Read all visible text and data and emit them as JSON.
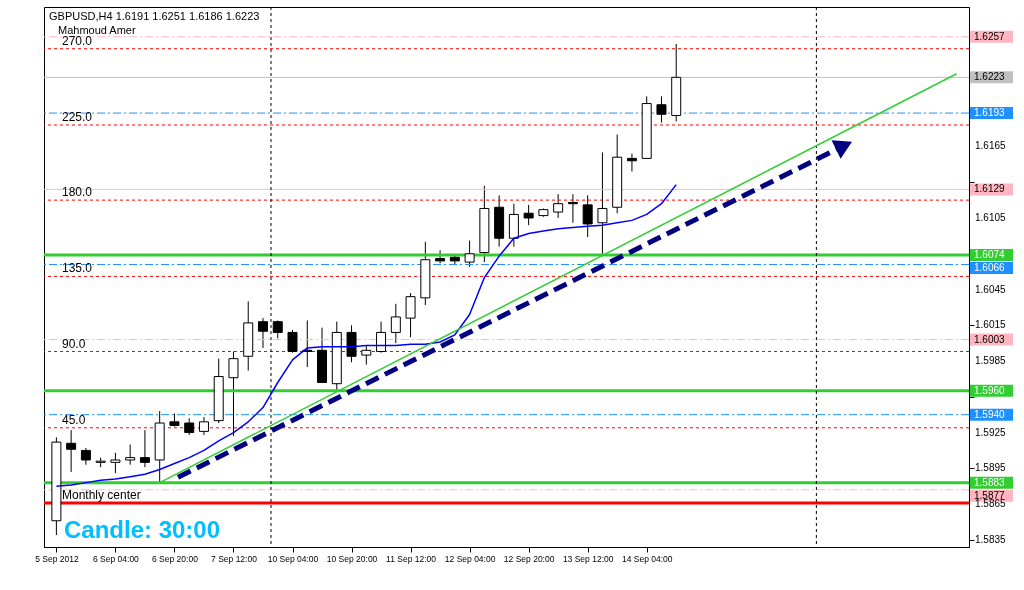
{
  "chart_data": {
    "type": "candlestick",
    "title": "GBPUSD,H4  1.6191 1.6251 1.6186 1.6223",
    "categories": [
      "5 Sep 2012",
      null,
      null,
      null,
      "6 Sep 04:00",
      null,
      null,
      null,
      "6 Sep 20:00",
      null,
      null,
      null,
      "7 Sep 12:00",
      null,
      null,
      null,
      "10 Sep 04:00",
      null,
      null,
      null,
      "10 Sep 20:00",
      null,
      null,
      null,
      "11 Sep 12:00",
      null,
      null,
      null,
      "12 Sep 04:00",
      null,
      null,
      null,
      "12 Sep 20:00",
      null,
      null,
      null,
      "13 Sep 12:00",
      null,
      null,
      null,
      "14 Sep 04:00",
      null,
      null,
      null,
      null,
      null,
      null,
      null,
      null,
      null,
      null,
      null,
      null,
      null,
      null,
      null,
      null,
      null,
      null,
      null,
      null,
      null
    ],
    "ohlc": [
      [
        1.5851,
        1.5921,
        1.5839,
        1.5917
      ],
      [
        1.5916,
        1.5927,
        1.5892,
        1.5911
      ],
      [
        1.591,
        1.5912,
        1.5898,
        1.5902
      ],
      [
        1.59,
        1.5904,
        1.5896,
        1.5901
      ],
      [
        1.59,
        1.5908,
        1.5891,
        1.5902
      ],
      [
        1.5902,
        1.5915,
        1.5898,
        1.5904
      ],
      [
        1.5904,
        1.5927,
        1.5896,
        1.59
      ],
      [
        1.5902,
        1.5943,
        1.5883,
        1.5933
      ],
      [
        1.5934,
        1.5941,
        1.593,
        1.5931
      ],
      [
        1.5933,
        1.5937,
        1.5923,
        1.5925
      ],
      [
        1.5926,
        1.5938,
        1.5923,
        1.5934
      ],
      [
        1.5935,
        1.5987,
        1.5933,
        1.5972
      ],
      [
        1.5971,
        1.5993,
        1.5922,
        1.5987
      ],
      [
        1.5989,
        1.6035,
        1.5977,
        1.6017
      ],
      [
        1.6018,
        1.6021,
        1.5996,
        1.601
      ],
      [
        1.6018,
        1.6019,
        1.6004,
        1.6009
      ],
      [
        1.6009,
        1.6011,
        1.5992,
        1.5993
      ],
      [
        1.5994,
        1.6019,
        1.598,
        1.5993
      ],
      [
        1.5994,
        1.6013,
        1.5967,
        1.5967
      ],
      [
        1.5966,
        1.6018,
        1.596,
        1.6009
      ],
      [
        1.6009,
        1.6015,
        1.5984,
        1.5989
      ],
      [
        1.599,
        1.5998,
        1.5982,
        1.5994
      ],
      [
        1.5993,
        1.6018,
        1.5992,
        1.6009
      ],
      [
        1.6009,
        1.6033,
        1.6,
        1.6022
      ],
      [
        1.6021,
        1.6042,
        1.6005,
        1.6039
      ],
      [
        1.6038,
        1.6085,
        1.6032,
        1.607
      ],
      [
        1.6071,
        1.6078,
        1.6067,
        1.6069
      ],
      [
        1.6072,
        1.6075,
        1.6066,
        1.6069
      ],
      [
        1.6068,
        1.6086,
        1.6064,
        1.6075
      ],
      [
        1.6076,
        1.6132,
        1.6068,
        1.6113
      ],
      [
        1.6114,
        1.6124,
        1.6081,
        1.6088
      ],
      [
        1.6088,
        1.6117,
        1.6081,
        1.6108
      ],
      [
        1.6109,
        1.6116,
        1.6099,
        1.6105
      ],
      [
        1.6107,
        1.6113,
        1.6106,
        1.6112
      ],
      [
        1.611,
        1.6125,
        1.6105,
        1.6117
      ],
      [
        1.6118,
        1.6125,
        1.6101,
        1.6117
      ],
      [
        1.6116,
        1.6124,
        1.6089,
        1.61
      ],
      [
        1.6101,
        1.616,
        1.6075,
        1.6113
      ],
      [
        1.6114,
        1.6175,
        1.6109,
        1.6156
      ],
      [
        1.6155,
        1.6159,
        1.6144,
        1.6153
      ],
      [
        1.6155,
        1.6207,
        1.6155,
        1.6201
      ],
      [
        1.62,
        1.6207,
        1.6185,
        1.6192
      ],
      [
        1.6191,
        1.6251,
        1.6186,
        1.6223
      ],
      null,
      null,
      null,
      null,
      null,
      null,
      null,
      null,
      null,
      null,
      null,
      null,
      null,
      null,
      null,
      null,
      null,
      null,
      null
    ],
    "ylim": [
      1.5829,
      1.6282
    ],
    "yticks": [
      1.5835,
      1.5865,
      1.5895,
      1.5925,
      {
        "value": 1.5955,
        "label": null
      },
      1.5985,
      1.6015,
      1.6045,
      {
        "value": 1.6075,
        "label": null
      },
      1.6105,
      {
        "value": 1.6135,
        "label": null
      },
      1.6165,
      {
        "value": 1.6195,
        "label": null
      },
      {
        "value": 1.6225,
        "label": null
      },
      {
        "value": 1.6255,
        "label": null
      }
    ],
    "series": [
      {
        "type": "line",
        "color": "#0000ff",
        "values": [
          1.588,
          1.5881,
          1.5883,
          1.5885,
          1.5886,
          1.5888,
          1.589,
          1.5894,
          1.5899,
          1.5904,
          1.591,
          1.5918,
          1.5925,
          1.5934,
          1.5946,
          1.5967,
          1.5986,
          1.5996,
          1.5997,
          1.5997,
          1.5997,
          1.5998,
          1.5998,
          1.5998,
          1.5999,
          1.5999,
          1.6001,
          1.6007,
          1.6024,
          1.6055,
          1.6073,
          1.6088,
          1.6092,
          1.6094,
          1.6096,
          1.6097,
          1.6098,
          1.6099,
          1.6101,
          1.6103,
          1.6108,
          1.6117,
          1.6133,
          null,
          null,
          null,
          null,
          null,
          null,
          null,
          null,
          null,
          null,
          null,
          null,
          null,
          null,
          null,
          null,
          null,
          null,
          null
        ]
      },
      {
        "type": "line",
        "color": "#32cd32",
        "values": [
          null,
          null,
          null,
          null,
          null,
          null,
          null,
          1.5883,
          null,
          null,
          null,
          null,
          null,
          null,
          null,
          null,
          null,
          null,
          null,
          null,
          null,
          null,
          null,
          null,
          null,
          null,
          null,
          null,
          null,
          null,
          null,
          null,
          null,
          null,
          null,
          null,
          null,
          null,
          null,
          null,
          null,
          null,
          null,
          null,
          null,
          null,
          null,
          null,
          null,
          null,
          null,
          null,
          null,
          null,
          null,
          null,
          null,
          null,
          null,
          null,
          null,
          1.6226
        ]
      }
    ],
    "ref_lines": [
      {
        "axis": "y",
        "value": 1.6257,
        "label": "1.6257",
        "color": "#ffb6c1",
        "line_style": "dashed"
      },
      {
        "axis": "y",
        "value": 1.6247,
        "color": "#ff0000",
        "line_style": "dotted"
      },
      {
        "axis": "y",
        "value": 1.6223,
        "label": "1.6223",
        "color": "#c0c0c0",
        "line_style": "solid"
      },
      {
        "axis": "y",
        "value": 1.6193,
        "label": "1.6193",
        "color": "#1e90ff",
        "line_style": "dashed"
      },
      {
        "axis": "y",
        "value": 1.6183,
        "color": "#ff0000",
        "line_style": "dotted"
      },
      {
        "axis": "y",
        "value": 1.6129,
        "label": "1.6129",
        "color": "#ffb6c1",
        "line_style": "solid"
      },
      {
        "axis": "y",
        "value": 1.612,
        "color": "#ff0000",
        "line_style": "dotted"
      },
      {
        "axis": "y",
        "value": 1.6074,
        "label": "1.6074",
        "color": "#32cd32",
        "line_style": "solid"
      },
      {
        "axis": "y",
        "value": 1.6066,
        "label": "1.6066",
        "color": "#1e90ff",
        "line_style": "dashed"
      },
      {
        "axis": "y",
        "value": 1.6056,
        "color": "#ff0000",
        "line_style": "dotted"
      },
      {
        "axis": "y",
        "value": 1.6003,
        "label": "1.6003",
        "color": "#ffb6c1",
        "line_style": "dashed"
      },
      {
        "axis": "y",
        "value": 1.5993,
        "color": "#ff0000",
        "line_style": "dotted"
      },
      {
        "axis": "y",
        "value": 1.596,
        "label": "1.5960",
        "color": "#32cd32",
        "line_style": "solid"
      },
      {
        "axis": "y",
        "value": 1.594,
        "label": "1.5940",
        "color": "#1e90ff",
        "line_style": "dashed"
      },
      {
        "axis": "y",
        "value": 1.5929,
        "color": "#ff0000",
        "line_style": "dotted"
      },
      {
        "axis": "y",
        "value": 1.5883,
        "label": "1.5883",
        "color": "#32cd32",
        "line_style": "solid"
      },
      {
        "axis": "y",
        "value": 1.5877,
        "label": "1.5877",
        "color": "#ffb6c1",
        "line_style": "dashed"
      },
      {
        "axis": "y",
        "value": 1.5866,
        "color": "#ff0000",
        "line_style": "solid"
      }
    ],
    "annotations": [
      "Mahmoud Amer",
      "Candle:  30:00",
      {
        "text": "270.0",
        "y": 1.6247
      },
      {
        "text": "225.0",
        "y": 1.6183
      },
      {
        "text": "180.0",
        "y": 1.612
      },
      {
        "text": "135.0",
        "y": 1.6056
      },
      {
        "text": "90.0",
        "y": 1.5993
      },
      {
        "text": "45.0",
        "y": 1.5929
      },
      {
        "text": "Monthly center",
        "y": 1.5866
      }
    ],
    "grid": false
  }
}
